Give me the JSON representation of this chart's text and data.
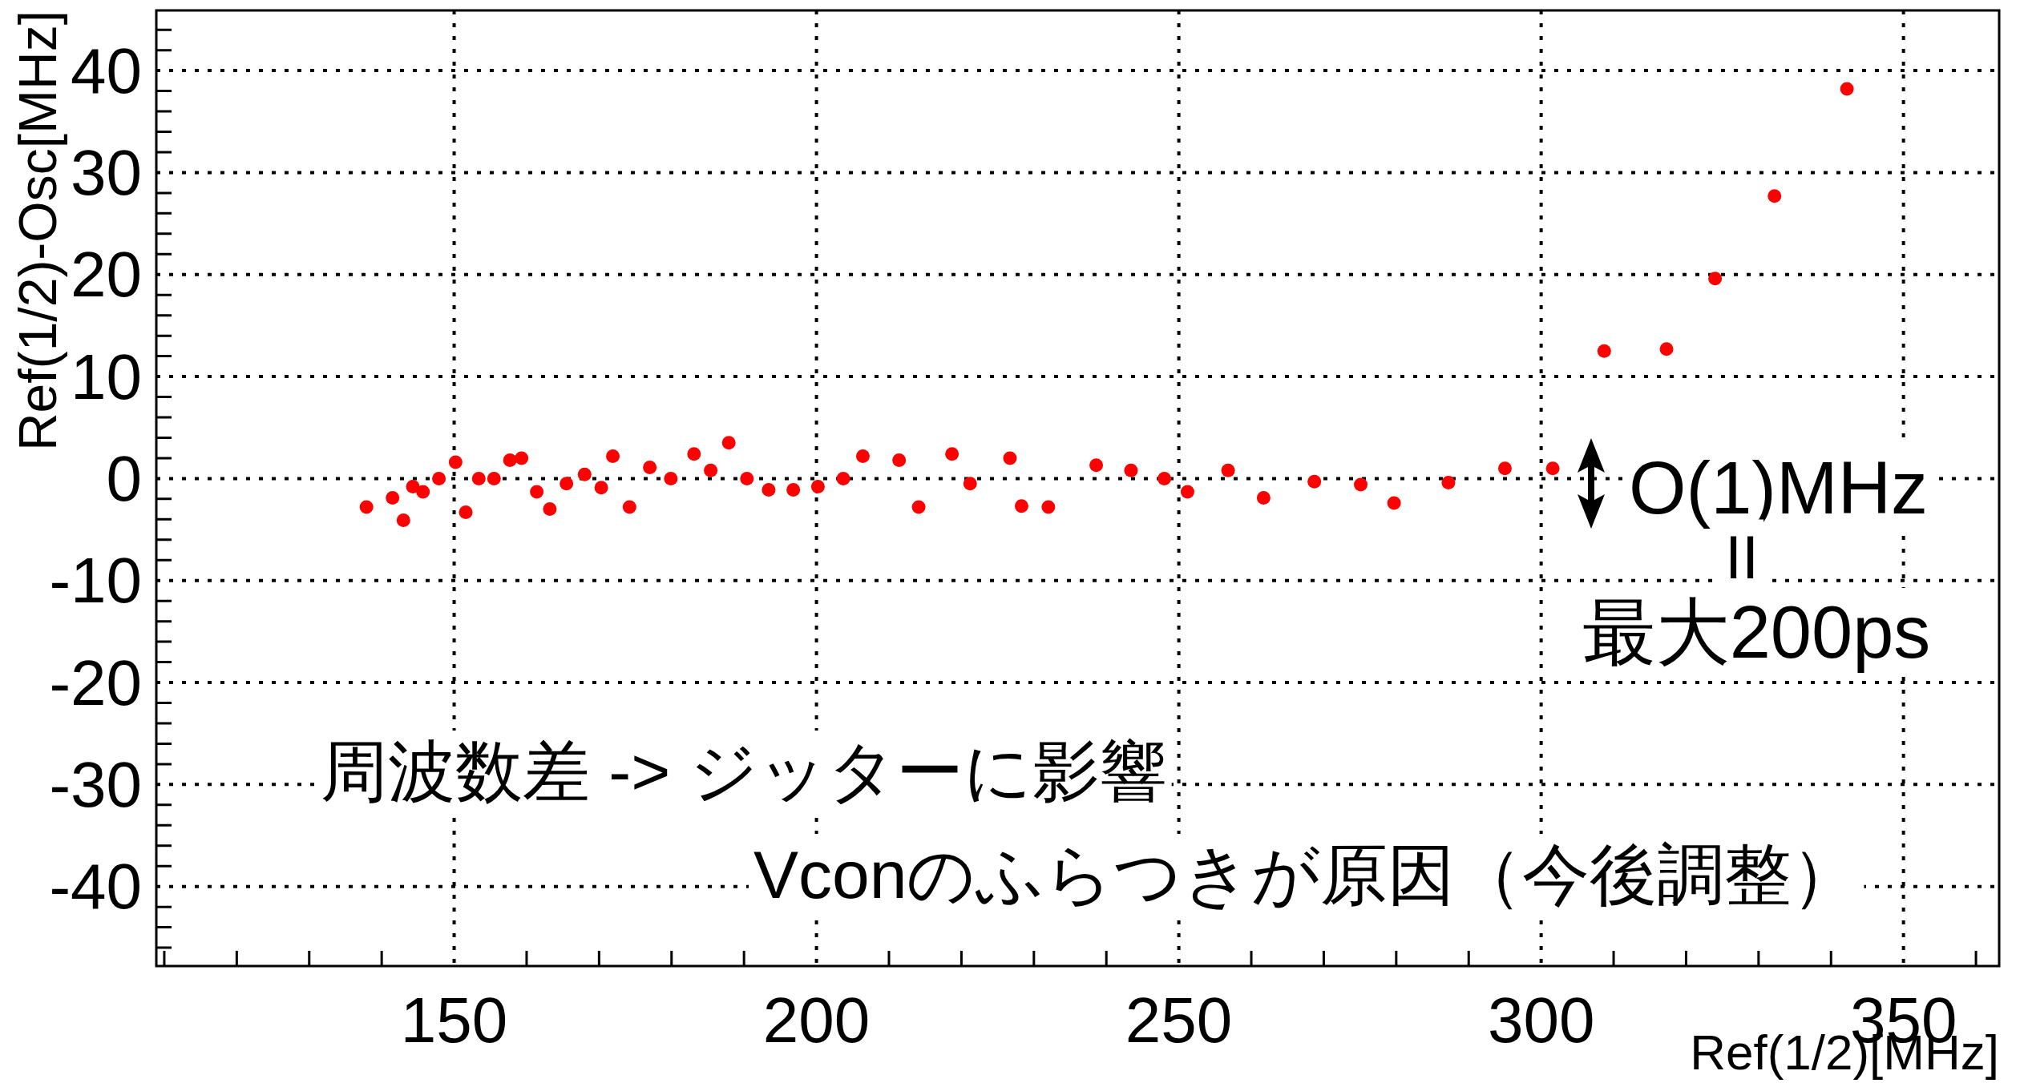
{
  "chart_data": {
    "type": "scatter",
    "xlabel": "Ref(1/2)[MHz]",
    "ylabel": "Ref(1/2)-Osc[MHz]",
    "xlim": [
      108.9,
      363.2
    ],
    "ylim": [
      -47.8,
      45.9
    ],
    "xticks": [
      150,
      200,
      250,
      300,
      350
    ],
    "yticks": [
      -40,
      -30,
      -20,
      -10,
      0,
      10,
      20,
      30,
      40
    ],
    "grid": true,
    "marker": "circle",
    "series": [
      {
        "color": "#ff0000",
        "x": [
          137.9,
          141.5,
          143.0,
          144.3,
          145.7,
          147.9,
          150.2,
          151.6,
          153.4,
          155.5,
          157.7,
          159.3,
          161.4,
          163.2,
          165.5,
          168.0,
          170.3,
          171.9,
          174.2,
          177.0,
          179.9,
          183.1,
          185.4,
          187.9,
          190.4,
          193.4,
          196.8,
          200.2,
          203.7,
          206.4,
          211.4,
          214.1,
          218.7,
          221.2,
          226.7,
          228.3,
          232.0,
          238.6,
          243.4,
          248.0,
          251.2,
          256.8,
          261.7,
          268.7,
          275.1,
          279.7,
          287.2,
          295.0,
          301.6,
          308.7,
          317.3,
          324.0,
          332.2,
          342.2
        ],
        "values": [
          -2.8,
          -1.9,
          -4.1,
          -0.8,
          -1.3,
          0,
          1.6,
          -3.3,
          0,
          0,
          1.8,
          2.0,
          -1.3,
          -3.0,
          -0.5,
          0.4,
          -0.9,
          2.2,
          -2.8,
          1.1,
          0,
          2.4,
          0.8,
          3.5,
          0,
          -1.1,
          -1.1,
          -0.8,
          0,
          2.2,
          1.8,
          -2.8,
          2.4,
          -0.5,
          2.0,
          -2.7,
          -2.8,
          1.3,
          0.8,
          0,
          -1.3,
          0.8,
          -1.9,
          -0.3,
          -0.6,
          -2.4,
          -0.4,
          1.0,
          1.0,
          12.5,
          12.7,
          19.6,
          27.7,
          38.2
        ]
      }
    ],
    "annotations": [
      "周波数差 -> ジッターに影響",
      "Vconのふらつきが原因（今後調整）",
      "O(1)MHz",
      "II",
      "最大200ps"
    ]
  }
}
